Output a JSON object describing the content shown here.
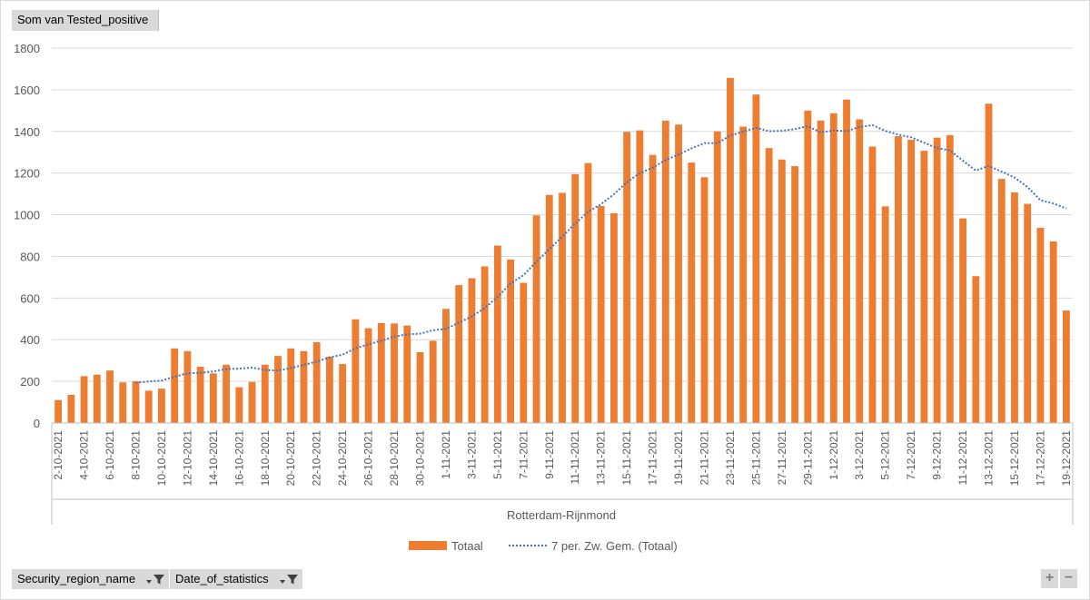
{
  "value_field": "Som van Tested_positive",
  "filters": [
    {
      "label": "Security_region_name"
    },
    {
      "label": "Date_of_statistics"
    }
  ],
  "zoom": {
    "plus": "+",
    "minus": "−"
  },
  "colors": {
    "bar": "#ed7d31",
    "trend": "#4472c4",
    "grid": "#d9d9d9",
    "axis": "#bfbfbf"
  },
  "chart_data": {
    "type": "bar",
    "xlabel": "Rotterdam-Rijnmond",
    "ylim": [
      0,
      1800
    ],
    "yticks": [
      0,
      200,
      400,
      600,
      800,
      1000,
      1200,
      1400,
      1600,
      1800
    ],
    "grid": true,
    "legend_position": "bottom",
    "categories": [
      "2-10-2021",
      "3-10-2021",
      "4-10-2021",
      "5-10-2021",
      "6-10-2021",
      "7-10-2021",
      "8-10-2021",
      "9-10-2021",
      "10-10-2021",
      "11-10-2021",
      "12-10-2021",
      "13-10-2021",
      "14-10-2021",
      "15-10-2021",
      "16-10-2021",
      "17-10-2021",
      "18-10-2021",
      "19-10-2021",
      "20-10-2021",
      "21-10-2021",
      "22-10-2021",
      "23-10-2021",
      "24-10-2021",
      "25-10-2021",
      "26-10-2021",
      "27-10-2021",
      "28-10-2021",
      "29-10-2021",
      "30-10-2021",
      "31-10-2021",
      "1-11-2021",
      "2-11-2021",
      "3-11-2021",
      "4-11-2021",
      "5-11-2021",
      "6-11-2021",
      "7-11-2021",
      "8-11-2021",
      "9-11-2021",
      "10-11-2021",
      "11-11-2021",
      "12-11-2021",
      "13-11-2021",
      "14-11-2021",
      "15-11-2021",
      "16-11-2021",
      "17-11-2021",
      "18-11-2021",
      "19-11-2021",
      "20-11-2021",
      "21-11-2021",
      "22-11-2021",
      "23-11-2021",
      "24-11-2021",
      "25-11-2021",
      "26-11-2021",
      "27-11-2021",
      "28-11-2021",
      "29-11-2021",
      "30-11-2021",
      "1-12-2021",
      "2-12-2021",
      "3-12-2021",
      "4-12-2021",
      "5-12-2021",
      "6-12-2021",
      "7-12-2021",
      "8-12-2021",
      "9-12-2021",
      "10-12-2021",
      "11-12-2021",
      "12-12-2021",
      "13-12-2021",
      "14-12-2021",
      "15-12-2021",
      "16-12-2021",
      "17-12-2021",
      "18-12-2021",
      "19-12-2021"
    ],
    "tick_labels": [
      "2-10-2021",
      "4-10-2021",
      "6-10-2021",
      "8-10-2021",
      "10-10-2021",
      "12-10-2021",
      "14-10-2021",
      "16-10-2021",
      "18-10-2021",
      "20-10-2021",
      "22-10-2021",
      "24-10-2021",
      "26-10-2021",
      "28-10-2021",
      "30-10-2021",
      "1-11-2021",
      "3-11-2021",
      "5-11-2021",
      "7-11-2021",
      "9-11-2021",
      "11-11-2021",
      "13-11-2021",
      "15-11-2021",
      "17-11-2021",
      "19-11-2021",
      "21-11-2021",
      "23-11-2021",
      "25-11-2021",
      "27-11-2021",
      "29-11-2021",
      "1-12-2021",
      "3-12-2021",
      "5-12-2021",
      "7-12-2021",
      "9-12-2021",
      "11-12-2021",
      "13-12-2021",
      "15-12-2021",
      "17-12-2021",
      "19-12-2021"
    ],
    "series": [
      {
        "name": "Totaal",
        "type": "bar",
        "values": [
          110,
          135,
          225,
          232,
          252,
          195,
          200,
          155,
          165,
          358,
          345,
          270,
          238,
          280,
          172,
          197,
          280,
          322,
          358,
          345,
          388,
          318,
          283,
          498,
          455,
          480,
          478,
          468,
          340,
          395,
          548,
          662,
          695,
          752,
          852,
          785,
          673,
          997,
          1095,
          1105,
          1195,
          1248,
          1042,
          1007,
          1398,
          1405,
          1287,
          1452,
          1433,
          1250,
          1180,
          1400,
          1657,
          1423,
          1577,
          1320,
          1265,
          1233,
          1500,
          1452,
          1487,
          1553,
          1458,
          1327,
          1040,
          1377,
          1360,
          1307,
          1370,
          1382,
          982,
          705,
          1533,
          1172,
          1107,
          1052,
          937,
          872,
          540
        ]
      },
      {
        "name": "7 per. Zw. Gem. (Totaal)",
        "type": "line",
        "period": 7
      }
    ]
  }
}
